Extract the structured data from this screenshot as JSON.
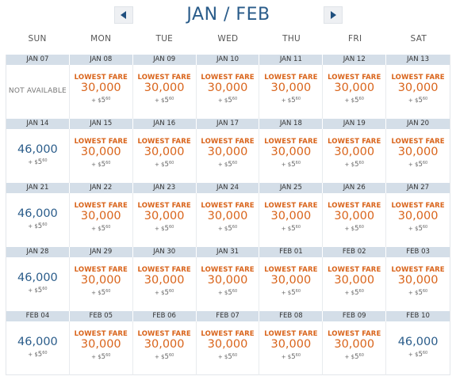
{
  "header": {
    "title": "JAN / FEB",
    "prev_icon": "chevron-left-icon",
    "next_icon": "chevron-right-icon"
  },
  "days_of_week": [
    "SUN",
    "MON",
    "TUE",
    "WED",
    "THU",
    "FRI",
    "SAT"
  ],
  "labels": {
    "lowest_fare": "LOWEST FARE",
    "not_available": "NOT AVAILABLE",
    "tax_prefix": "+ $",
    "tax_dollars": "5",
    "tax_cents": "60"
  },
  "colors": {
    "lowest_fare": "#d9641b",
    "regular_fare": "#2a5c8a",
    "date_bar": "#d4dee8"
  },
  "weeks": [
    {
      "dates": [
        "JAN 07",
        "JAN 08",
        "JAN 09",
        "JAN 10",
        "JAN 11",
        "JAN 12",
        "JAN 13"
      ],
      "fares": [
        {
          "status": "na"
        },
        {
          "status": "lowest",
          "miles": "30,000"
        },
        {
          "status": "lowest",
          "miles": "30,000"
        },
        {
          "status": "lowest",
          "miles": "30,000"
        },
        {
          "status": "lowest",
          "miles": "30,000"
        },
        {
          "status": "lowest",
          "miles": "30,000"
        },
        {
          "status": "lowest",
          "miles": "30,000"
        }
      ]
    },
    {
      "dates": [
        "JAN 14",
        "JAN 15",
        "JAN 16",
        "JAN 17",
        "JAN 18",
        "JAN 19",
        "JAN 20"
      ],
      "fares": [
        {
          "status": "regular",
          "miles": "46,000"
        },
        {
          "status": "lowest",
          "miles": "30,000"
        },
        {
          "status": "lowest",
          "miles": "30,000"
        },
        {
          "status": "lowest",
          "miles": "30,000"
        },
        {
          "status": "lowest",
          "miles": "30,000"
        },
        {
          "status": "lowest",
          "miles": "30,000"
        },
        {
          "status": "lowest",
          "miles": "30,000"
        }
      ]
    },
    {
      "dates": [
        "JAN 21",
        "JAN 22",
        "JAN 23",
        "JAN 24",
        "JAN 25",
        "JAN 26",
        "JAN 27"
      ],
      "fares": [
        {
          "status": "regular",
          "miles": "46,000"
        },
        {
          "status": "lowest",
          "miles": "30,000"
        },
        {
          "status": "lowest",
          "miles": "30,000"
        },
        {
          "status": "lowest",
          "miles": "30,000"
        },
        {
          "status": "lowest",
          "miles": "30,000"
        },
        {
          "status": "lowest",
          "miles": "30,000"
        },
        {
          "status": "lowest",
          "miles": "30,000"
        }
      ]
    },
    {
      "dates": [
        "JAN 28",
        "JAN 29",
        "JAN 30",
        "JAN 31",
        "FEB 01",
        "FEB 02",
        "FEB 03"
      ],
      "fares": [
        {
          "status": "regular",
          "miles": "46,000"
        },
        {
          "status": "lowest",
          "miles": "30,000"
        },
        {
          "status": "lowest",
          "miles": "30,000"
        },
        {
          "status": "lowest",
          "miles": "30,000"
        },
        {
          "status": "lowest",
          "miles": "30,000"
        },
        {
          "status": "lowest",
          "miles": "30,000"
        },
        {
          "status": "lowest",
          "miles": "30,000"
        }
      ]
    },
    {
      "dates": [
        "FEB 04",
        "FEB 05",
        "FEB 06",
        "FEB 07",
        "FEB 08",
        "FEB 09",
        "FEB 10"
      ],
      "fares": [
        {
          "status": "regular",
          "miles": "46,000"
        },
        {
          "status": "lowest",
          "miles": "30,000"
        },
        {
          "status": "lowest",
          "miles": "30,000"
        },
        {
          "status": "lowest",
          "miles": "30,000"
        },
        {
          "status": "lowest",
          "miles": "30,000"
        },
        {
          "status": "lowest",
          "miles": "30,000"
        },
        {
          "status": "regular",
          "miles": "46,000"
        }
      ]
    }
  ]
}
